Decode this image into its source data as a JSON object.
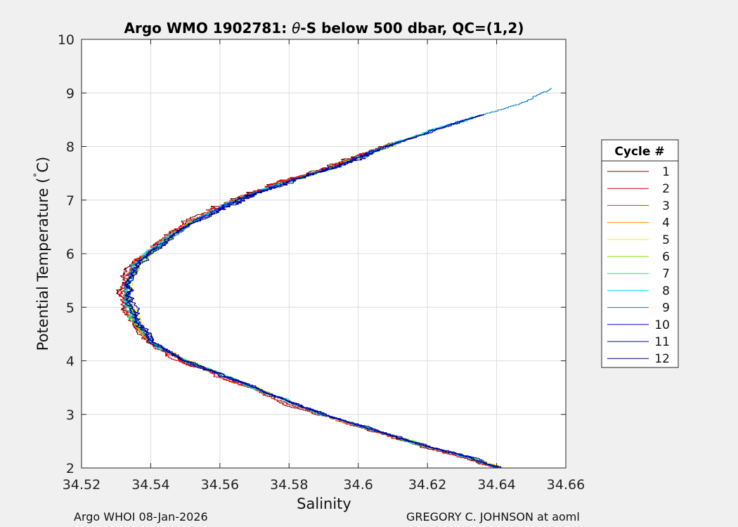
{
  "chart_data": {
    "type": "line",
    "title_main": "Argo WMO 1902781: ",
    "title_theta": "θ",
    "title_rest": "-S below 500 dbar,  QC=(1,2)",
    "xlabel": "Salinity",
    "ylabel_main": "Potential Temperature (",
    "ylabel_deg": "˚",
    "ylabel_end": "C)",
    "xlim": [
      34.52,
      34.66
    ],
    "ylim": [
      2,
      10
    ],
    "xticks": [
      34.52,
      34.54,
      34.56,
      34.58,
      34.6,
      34.62,
      34.64,
      34.66
    ],
    "xtick_labels": [
      "34.52",
      "34.54",
      "34.56",
      "34.58",
      "34.6",
      "34.62",
      "34.64",
      "34.66"
    ],
    "yticks": [
      2,
      3,
      4,
      5,
      6,
      7,
      8,
      9,
      10
    ],
    "ytick_labels": [
      "2",
      "3",
      "4",
      "5",
      "6",
      "7",
      "8",
      "9",
      "10"
    ],
    "grid": true,
    "legend_title": "Cycle #",
    "legend_position": "right",
    "reference_profile": [
      [
        34.641,
        2.0
      ],
      [
        34.632,
        2.2
      ],
      [
        34.62,
        2.4
      ],
      [
        34.61,
        2.6
      ],
      [
        34.6,
        2.8
      ],
      [
        34.59,
        3.0
      ],
      [
        34.582,
        3.2
      ],
      [
        34.574,
        3.4
      ],
      [
        34.566,
        3.6
      ],
      [
        34.558,
        3.8
      ],
      [
        34.55,
        4.0
      ],
      [
        34.544,
        4.2
      ],
      [
        34.54,
        4.4
      ],
      [
        34.537,
        4.6
      ],
      [
        34.535,
        4.8
      ],
      [
        34.534,
        5.0
      ],
      [
        34.533,
        5.2
      ],
      [
        34.533,
        5.4
      ],
      [
        34.534,
        5.6
      ],
      [
        34.536,
        5.8
      ],
      [
        34.539,
        6.0
      ],
      [
        34.543,
        6.2
      ],
      [
        34.547,
        6.4
      ],
      [
        34.552,
        6.6
      ],
      [
        34.558,
        6.8
      ],
      [
        34.565,
        7.0
      ],
      [
        34.573,
        7.2
      ],
      [
        34.582,
        7.4
      ],
      [
        34.592,
        7.6
      ],
      [
        34.6,
        7.8
      ],
      [
        34.608,
        8.0
      ],
      [
        34.617,
        8.2
      ],
      [
        34.626,
        8.4
      ],
      [
        34.636,
        8.6
      ],
      [
        34.646,
        8.8
      ],
      [
        34.657,
        9.1
      ]
    ],
    "series": [
      {
        "name": "1",
        "color": "#7f0000",
        "s_offset": -0.0012,
        "top_temp": 8.1,
        "jitter": 0.0016
      },
      {
        "name": "2",
        "color": "#dc0000",
        "s_offset": -0.001,
        "top_temp": 7.9,
        "jitter": 0.0015
      },
      {
        "name": "3",
        "color": "#ff2200",
        "s_offset": -0.0006,
        "top_temp": 8.0,
        "jitter": 0.0012
      },
      {
        "name": "4",
        "color": "#ff8c00",
        "s_offset": -0.0002,
        "top_temp": 8.1,
        "jitter": 0.001
      },
      {
        "name": "5",
        "color": "#ffee00",
        "s_offset": 0.0006,
        "top_temp": 8.0,
        "jitter": 0.001
      },
      {
        "name": "6",
        "color": "#7fdd00",
        "s_offset": 0.0002,
        "top_temp": 8.2,
        "jitter": 0.001
      },
      {
        "name": "7",
        "color": "#00ee88",
        "s_offset": 0.0,
        "top_temp": 8.5,
        "jitter": 0.001
      },
      {
        "name": "8",
        "color": "#00ddee",
        "s_offset": -0.0003,
        "top_temp": 8.6,
        "jitter": 0.001
      },
      {
        "name": "9",
        "color": "#0077cc",
        "s_offset": 0.0,
        "top_temp": 9.1,
        "jitter": 0.0009
      },
      {
        "name": "10",
        "color": "#0000ee",
        "s_offset": 0.0003,
        "top_temp": 8.6,
        "jitter": 0.0011
      },
      {
        "name": "11",
        "color": "#0000aa",
        "s_offset": 0.0008,
        "top_temp": 8.1,
        "jitter": 0.0012
      },
      {
        "name": "12",
        "color": "#00007f",
        "s_offset": 0.0004,
        "top_temp": 8.6,
        "jitter": 0.0012
      }
    ]
  },
  "footer": {
    "left": "Argo WHOI 08-Jan-2026",
    "right": "GREGORY C. JOHNSON at aoml"
  }
}
